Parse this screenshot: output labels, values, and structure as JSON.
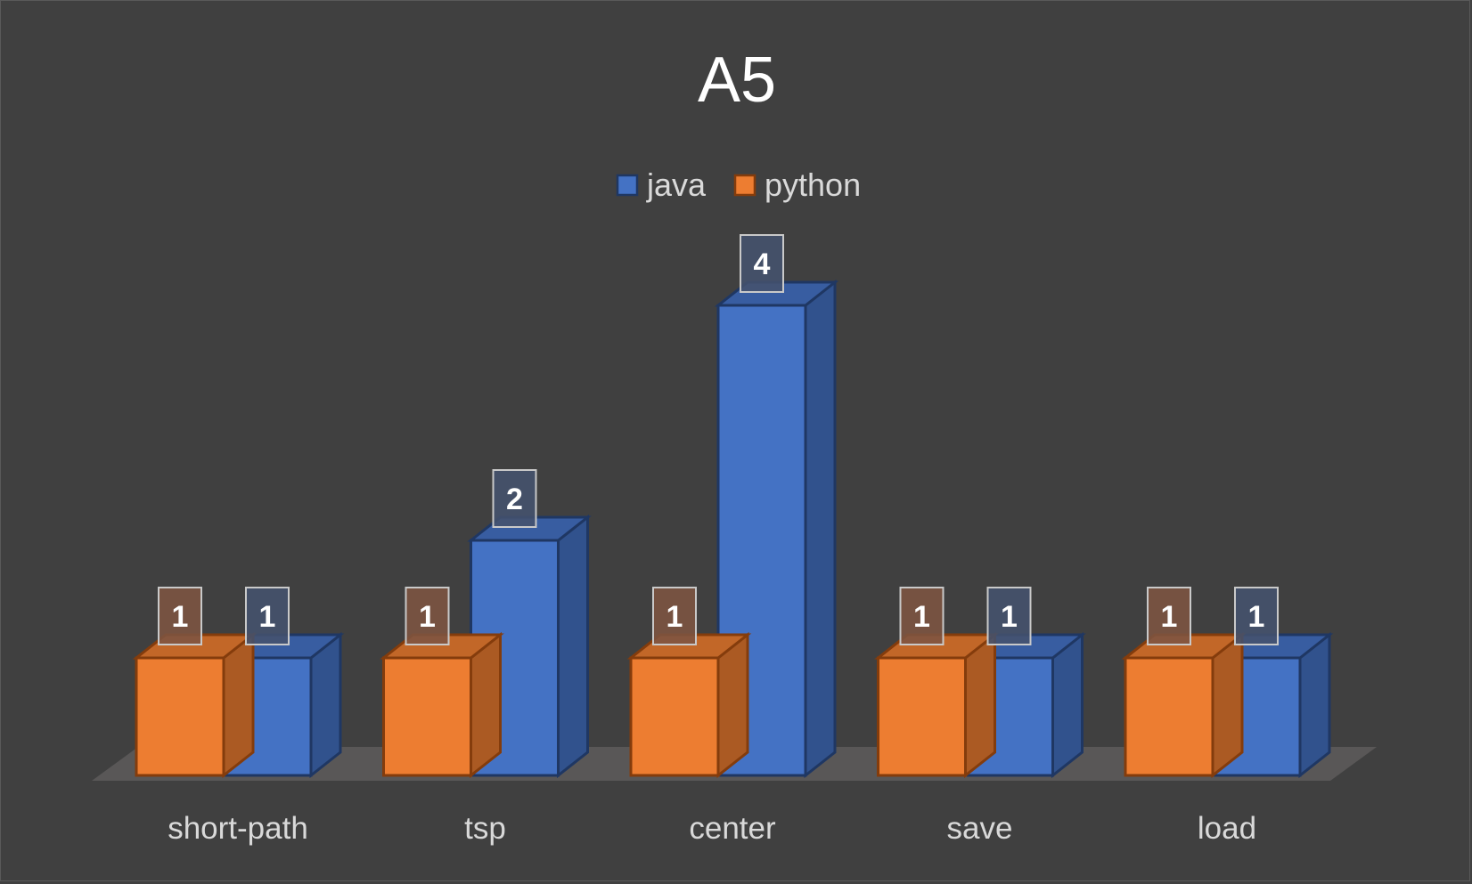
{
  "chart_data": {
    "type": "bar",
    "title": "A5",
    "categories": [
      "short-path",
      "tsp",
      "center",
      "save",
      "load"
    ],
    "series": [
      {
        "name": "python",
        "values": [
          1,
          1,
          1,
          1,
          1
        ]
      },
      {
        "name": "java",
        "values": [
          1,
          2,
          4,
          1,
          1
        ]
      }
    ],
    "legend": {
      "position": "top",
      "order": [
        "java",
        "python"
      ]
    },
    "ylim": [
      0,
      4
    ],
    "grid": false,
    "data_labels": true,
    "style": "3d-clustered-column"
  },
  "colors": {
    "background": "#404040",
    "java_fill": "#4472c4",
    "java_edge": "#1f3763",
    "python_fill": "#ed7d31",
    "python_edge": "#843c0c",
    "floor": "#595757"
  }
}
